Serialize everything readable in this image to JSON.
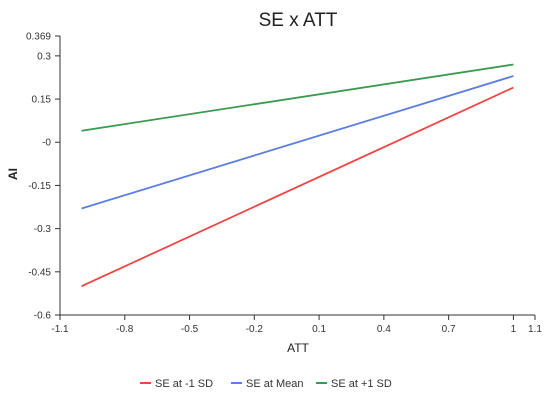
{
  "chart_data": {
    "type": "line",
    "title": "SE x ATT",
    "xlabel": "ATT",
    "ylabel": "AI",
    "xlim": [
      -1.1,
      1.1
    ],
    "ylim": [
      -0.6,
      0.369
    ],
    "x_ticks": [
      -1.1,
      -0.8,
      -0.5,
      -0.2,
      0.1,
      0.4,
      0.7,
      1,
      1.1
    ],
    "x_tick_labels": [
      "-1.1",
      "-0.8",
      "-0.5",
      "-0.2",
      "0.1",
      "0.4",
      "0.7",
      "1",
      "1.1"
    ],
    "y_ticks": [
      -0.6,
      -0.45,
      -0.3,
      -0.15,
      0,
      0.15,
      0.3,
      0.369
    ],
    "y_tick_labels": [
      "-0.6",
      "-0.45",
      "-0.3",
      "-0.15",
      "-0",
      "0.15",
      "0.3",
      "0.369"
    ],
    "grid": false,
    "legend_position": "bottom",
    "series": [
      {
        "name": "SE at -1 SD",
        "color": "#ef4444",
        "x": [
          -1,
          1
        ],
        "y": [
          -0.5,
          0.19
        ]
      },
      {
        "name": "SE at Mean",
        "color": "#5b7fe0",
        "x": [
          -1,
          1
        ],
        "y": [
          -0.23,
          0.23
        ]
      },
      {
        "name": "SE at +1 SD",
        "color": "#3c9a50",
        "x": [
          -1,
          1
        ],
        "y": [
          0.04,
          0.27
        ]
      }
    ]
  }
}
